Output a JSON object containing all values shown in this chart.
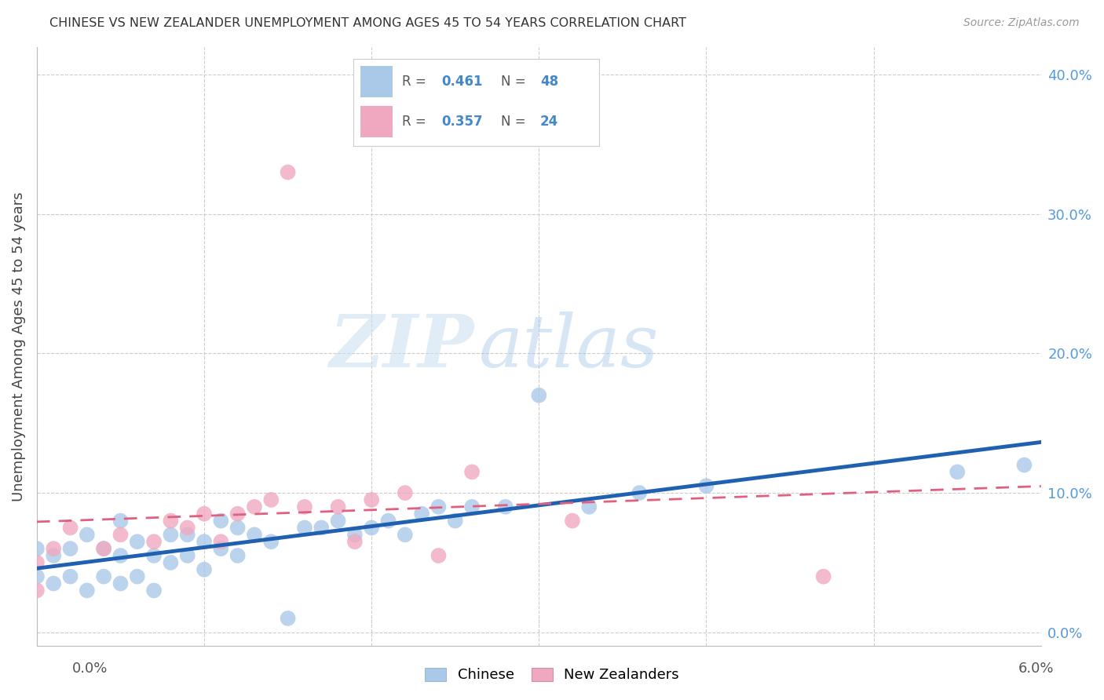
{
  "title": "CHINESE VS NEW ZEALANDER UNEMPLOYMENT AMONG AGES 45 TO 54 YEARS CORRELATION CHART",
  "source": "Source: ZipAtlas.com",
  "ylabel": "Unemployment Among Ages 45 to 54 years",
  "ylabel_right_ticks": [
    "0.0%",
    "10.0%",
    "20.0%",
    "30.0%",
    "40.0%"
  ],
  "ylabel_right_vals": [
    0.0,
    0.1,
    0.2,
    0.3,
    0.4
  ],
  "xmin": 0.0,
  "xmax": 0.06,
  "ymin": -0.01,
  "ymax": 0.42,
  "chinese_R": 0.461,
  "chinese_N": 48,
  "nz_R": 0.357,
  "nz_N": 24,
  "chinese_color": "#aac8e8",
  "chinese_line_color": "#2060b0",
  "nz_color": "#f0a8c0",
  "nz_line_color": "#e06080",
  "chinese_scatter_x": [
    0.0,
    0.0,
    0.001,
    0.001,
    0.002,
    0.002,
    0.003,
    0.003,
    0.004,
    0.004,
    0.005,
    0.005,
    0.005,
    0.006,
    0.006,
    0.007,
    0.007,
    0.008,
    0.008,
    0.009,
    0.009,
    0.01,
    0.01,
    0.011,
    0.011,
    0.012,
    0.012,
    0.013,
    0.014,
    0.015,
    0.016,
    0.017,
    0.018,
    0.019,
    0.02,
    0.021,
    0.022,
    0.023,
    0.024,
    0.025,
    0.026,
    0.028,
    0.03,
    0.033,
    0.036,
    0.04,
    0.055,
    0.059
  ],
  "chinese_scatter_y": [
    0.04,
    0.06,
    0.035,
    0.055,
    0.04,
    0.06,
    0.03,
    0.07,
    0.04,
    0.06,
    0.035,
    0.055,
    0.08,
    0.04,
    0.065,
    0.03,
    0.055,
    0.05,
    0.07,
    0.055,
    0.07,
    0.045,
    0.065,
    0.06,
    0.08,
    0.055,
    0.075,
    0.07,
    0.065,
    0.01,
    0.075,
    0.075,
    0.08,
    0.07,
    0.075,
    0.08,
    0.07,
    0.085,
    0.09,
    0.08,
    0.09,
    0.09,
    0.17,
    0.09,
    0.1,
    0.105,
    0.115,
    0.12
  ],
  "nz_scatter_x": [
    0.0,
    0.0,
    0.001,
    0.002,
    0.004,
    0.005,
    0.007,
    0.008,
    0.009,
    0.01,
    0.011,
    0.012,
    0.013,
    0.014,
    0.015,
    0.016,
    0.018,
    0.019,
    0.02,
    0.022,
    0.024,
    0.026,
    0.032,
    0.047
  ],
  "nz_scatter_y": [
    0.03,
    0.05,
    0.06,
    0.075,
    0.06,
    0.07,
    0.065,
    0.08,
    0.075,
    0.085,
    0.065,
    0.085,
    0.09,
    0.095,
    0.33,
    0.09,
    0.09,
    0.065,
    0.095,
    0.1,
    0.055,
    0.115,
    0.08,
    0.04
  ],
  "watermark_zip": "ZIP",
  "watermark_atlas": "atlas",
  "grid_color": "#cccccc",
  "grid_x_vals": [
    0.0,
    0.01,
    0.02,
    0.03,
    0.04,
    0.05,
    0.06
  ]
}
